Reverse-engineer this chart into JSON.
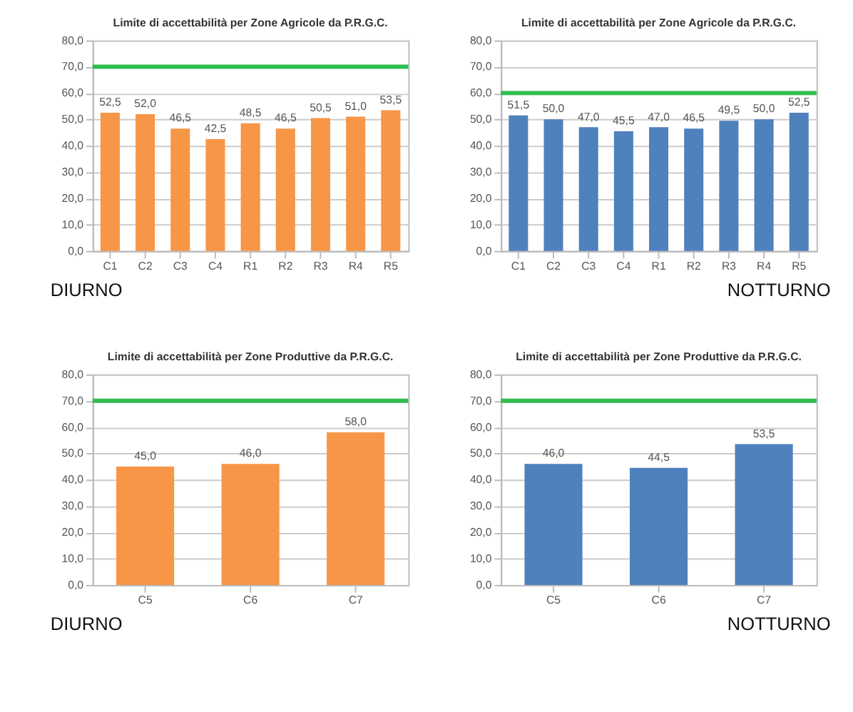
{
  "chart_data": [
    {
      "type": "bar",
      "title": "Limite di accettabilità per Zone Agricole da P.R.G.C.",
      "categories": [
        "C1",
        "C2",
        "C3",
        "C4",
        "R1",
        "R2",
        "R3",
        "R4",
        "R5"
      ],
      "color": "#f79646",
      "values": [
        52.5,
        52.0,
        46.5,
        42.5,
        48.5,
        46.5,
        50.5,
        51.0,
        53.5
      ],
      "value_labels": [
        "52,5",
        "52,0",
        "46,5",
        "42,5",
        "48,5",
        "46,5",
        "50,5",
        "51,0",
        "53,5"
      ],
      "ylim": [
        0,
        80
      ],
      "yticks": [
        {
          "value": 0,
          "label": "0,0"
        },
        {
          "value": 10,
          "label": "10,0"
        },
        {
          "value": 20,
          "label": "20,0"
        },
        {
          "value": 30,
          "label": "30,0"
        },
        {
          "value": 40,
          "label": "40,0"
        },
        {
          "value": 50,
          "label": "50,0"
        },
        {
          "value": 60,
          "label": "60,0"
        },
        {
          "value": 70,
          "label": "70,0"
        },
        {
          "value": 80,
          "label": "80,0"
        }
      ],
      "grid": "y",
      "ref_lines": [
        {
          "axis": "y",
          "value": 70,
          "color": "#2ebd4e"
        }
      ],
      "annotations": [
        "DIURNO"
      ]
    },
    {
      "type": "bar",
      "title": "Limite di accettabilità per Zone Agricole da P.R.G.C.",
      "categories": [
        "C1",
        "C2",
        "C3",
        "C4",
        "R1",
        "R2",
        "R3",
        "R4",
        "R5"
      ],
      "color": "#4f81bd",
      "values": [
        51.5,
        50.0,
        47.0,
        45.5,
        47.0,
        46.5,
        49.5,
        50.0,
        52.5
      ],
      "value_labels": [
        "51,5",
        "50,0",
        "47,0",
        "45,5",
        "47,0",
        "46,5",
        "49,5",
        "50,0",
        "52,5"
      ],
      "ylim": [
        0,
        80
      ],
      "yticks": [
        {
          "value": 0,
          "label": "0,0"
        },
        {
          "value": 10,
          "label": "10,0"
        },
        {
          "value": 20,
          "label": "20,0"
        },
        {
          "value": 30,
          "label": "30,0"
        },
        {
          "value": 40,
          "label": "40,0"
        },
        {
          "value": 50,
          "label": "50,0"
        },
        {
          "value": 60,
          "label": "60,0"
        },
        {
          "value": 70,
          "label": "70,0"
        },
        {
          "value": 80,
          "label": "80,0"
        }
      ],
      "grid": "y",
      "ref_lines": [
        {
          "axis": "y",
          "value": 60,
          "color": "#2ebd4e"
        }
      ],
      "annotations": [
        "NOTTURNO"
      ]
    },
    {
      "type": "bar",
      "title": "Limite di accettabilità per Zone Produttive da P.R.G.C.",
      "categories": [
        "C5",
        "C6",
        "C7"
      ],
      "color": "#f79646",
      "values": [
        45.0,
        46.0,
        58.0
      ],
      "value_labels": [
        "45,0",
        "46,0",
        "58,0"
      ],
      "ylim": [
        0,
        80
      ],
      "yticks": [
        {
          "value": 0,
          "label": "0,0"
        },
        {
          "value": 10,
          "label": "10,0"
        },
        {
          "value": 20,
          "label": "20,0"
        },
        {
          "value": 30,
          "label": "30,0"
        },
        {
          "value": 40,
          "label": "40,0"
        },
        {
          "value": 50,
          "label": "50,0"
        },
        {
          "value": 60,
          "label": "60,0"
        },
        {
          "value": 70,
          "label": "70,0"
        },
        {
          "value": 80,
          "label": "80,0"
        }
      ],
      "grid": "y",
      "ref_lines": [
        {
          "axis": "y",
          "value": 70,
          "color": "#2ebd4e"
        }
      ],
      "annotations": [
        "DIURNO"
      ]
    },
    {
      "type": "bar",
      "title": "Limite di accettabilità per Zone Produttive da P.R.G.C.",
      "categories": [
        "C5",
        "C6",
        "C7"
      ],
      "color": "#4f81bd",
      "values": [
        46.0,
        44.5,
        53.5
      ],
      "value_labels": [
        "46,0",
        "44,5",
        "53,5"
      ],
      "ylim": [
        0,
        80
      ],
      "yticks": [
        {
          "value": 0,
          "label": "0,0"
        },
        {
          "value": 10,
          "label": "10,0"
        },
        {
          "value": 20,
          "label": "20,0"
        },
        {
          "value": 30,
          "label": "30,0"
        },
        {
          "value": 40,
          "label": "40,0"
        },
        {
          "value": 50,
          "label": "50,0"
        },
        {
          "value": 60,
          "label": "60,0"
        },
        {
          "value": 70,
          "label": "70,0"
        },
        {
          "value": 80,
          "label": "80,0"
        }
      ],
      "grid": "y",
      "ref_lines": [
        {
          "axis": "y",
          "value": 70,
          "color": "#2ebd4e"
        }
      ],
      "annotations": [
        "NOTTURNO"
      ]
    }
  ]
}
